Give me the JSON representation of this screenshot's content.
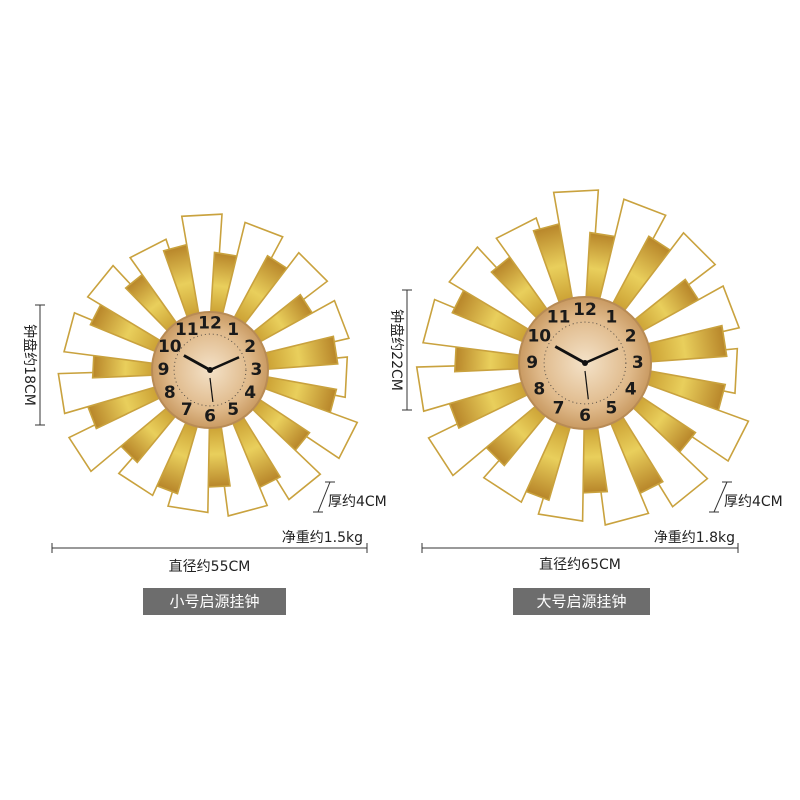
{
  "products": [
    {
      "dial_size": "钟盘约18CM",
      "thickness": "厚约4CM",
      "net_weight": "净重约1.5kg",
      "diameter": "直径约55CM",
      "name": "小号启源挂钟"
    },
    {
      "dial_size": "钟盘约22CM",
      "thickness": "厚约4CM",
      "net_weight": "净重约1.8kg",
      "diameter": "直径约65CM",
      "name": "大号启源挂钟"
    }
  ],
  "dial_numbers": [
    "12",
    "1",
    "2",
    "3",
    "4",
    "5",
    "6",
    "7",
    "8",
    "9",
    "10",
    "11"
  ]
}
